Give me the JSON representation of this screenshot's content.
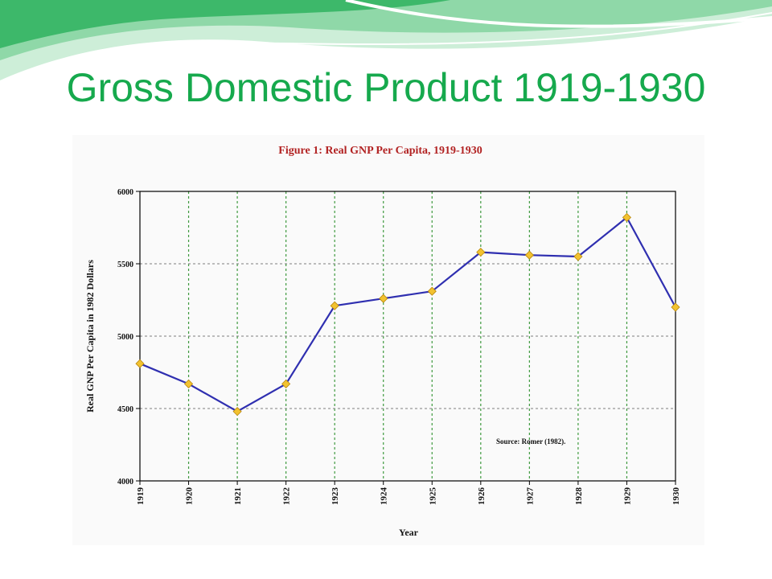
{
  "slide": {
    "title": "Gross Domestic Product 1919-1930"
  },
  "colors": {
    "title": "#16a94d",
    "wave_light": "#cdeed8",
    "wave_mid": "#8fd8a8",
    "wave_dark": "#3db86a",
    "figure_title": "#b22222",
    "line": "#2f2fb0",
    "marker": "#f2c230",
    "grid_vertical": "#3f9a3f",
    "grid_horizontal": "#7f7f7f"
  },
  "chart_data": {
    "type": "line",
    "title": "Figure 1: Real GNP Per Capita, 1919-1930",
    "xlabel": "Year",
    "ylabel": "Real GNP Per Capita in 1982 Dollars",
    "x": [
      "1919",
      "1920",
      "1921",
      "1922",
      "1923",
      "1924",
      "1925",
      "1926",
      "1927",
      "1928",
      "1929",
      "1930"
    ],
    "series": [
      {
        "values": [
          4810,
          4670,
          4480,
          4670,
          5210,
          5260,
          5310,
          5580,
          5560,
          5550,
          5820,
          5200
        ]
      }
    ],
    "ylim": [
      4000,
      6000
    ],
    "yticks": [
      "4000",
      "4500",
      "5000",
      "5500",
      "6000"
    ],
    "grid": true,
    "annotation": "Source: Romer (1982)."
  }
}
